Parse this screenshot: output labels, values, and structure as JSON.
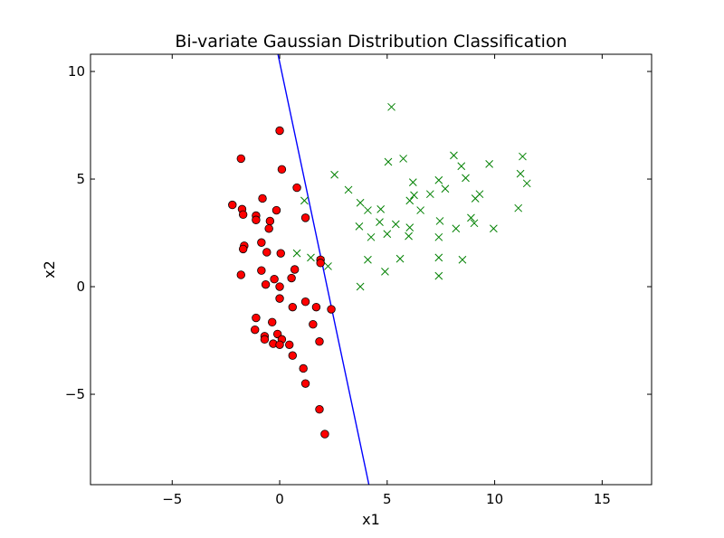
{
  "chart_data": {
    "type": "scatter",
    "title": "Bi-variate Gaussian Distribution Classification",
    "xlabel": "x1",
    "ylabel": "x2",
    "xlim": [
      -8.8,
      17.3
    ],
    "ylim": [
      -9.2,
      10.8
    ],
    "xticks": [
      -5,
      0,
      5,
      10,
      15
    ],
    "yticks": [
      -5,
      0,
      5,
      10
    ],
    "grid": false,
    "colors": {
      "class_a": "#ff0000",
      "class_b": "#008000",
      "boundary": "#0000ff"
    },
    "series": [
      {
        "marker": "circle",
        "points": [
          [
            0.0,
            7.25
          ],
          [
            -1.8,
            5.95
          ],
          [
            0.1,
            5.45
          ],
          [
            0.8,
            4.6
          ],
          [
            -0.8,
            4.1
          ],
          [
            -2.2,
            3.8
          ],
          [
            -1.75,
            3.6
          ],
          [
            -0.15,
            3.55
          ],
          [
            -1.7,
            3.35
          ],
          [
            -1.1,
            3.3
          ],
          [
            -1.1,
            3.1
          ],
          [
            -0.45,
            3.05
          ],
          [
            1.2,
            3.2
          ],
          [
            -0.5,
            2.7
          ],
          [
            -0.85,
            2.05
          ],
          [
            -1.65,
            1.9
          ],
          [
            -1.7,
            1.75
          ],
          [
            -0.6,
            1.6
          ],
          [
            0.05,
            1.55
          ],
          [
            1.9,
            1.25
          ],
          [
            1.9,
            1.1
          ],
          [
            0.7,
            0.8
          ],
          [
            -0.85,
            0.75
          ],
          [
            -1.8,
            0.55
          ],
          [
            0.55,
            0.4
          ],
          [
            -0.25,
            0.35
          ],
          [
            -0.65,
            0.1
          ],
          [
            0.0,
            0.0
          ],
          [
            0.0,
            -0.55
          ],
          [
            1.2,
            -0.7
          ],
          [
            0.6,
            -0.95
          ],
          [
            1.7,
            -0.95
          ],
          [
            2.4,
            -1.05
          ],
          [
            -1.1,
            -1.45
          ],
          [
            -0.35,
            -1.65
          ],
          [
            1.55,
            -1.75
          ],
          [
            -1.15,
            -2.0
          ],
          [
            -0.1,
            -2.2
          ],
          [
            -0.7,
            -2.3
          ],
          [
            -0.7,
            -2.45
          ],
          [
            0.1,
            -2.45
          ],
          [
            -0.3,
            -2.65
          ],
          [
            0.0,
            -2.7
          ],
          [
            0.45,
            -2.7
          ],
          [
            1.85,
            -2.55
          ],
          [
            0.6,
            -3.2
          ],
          [
            1.1,
            -3.8
          ],
          [
            1.2,
            -4.5
          ],
          [
            1.85,
            -5.7
          ],
          [
            2.1,
            -6.85
          ]
        ]
      },
      {
        "marker": "x",
        "points": [
          [
            5.2,
            8.35
          ],
          [
            11.3,
            6.05
          ],
          [
            8.1,
            6.1
          ],
          [
            5.75,
            5.95
          ],
          [
            5.05,
            5.8
          ],
          [
            9.75,
            5.7
          ],
          [
            8.45,
            5.6
          ],
          [
            11.2,
            5.25
          ],
          [
            2.55,
            5.2
          ],
          [
            8.65,
            5.05
          ],
          [
            7.4,
            4.95
          ],
          [
            6.2,
            4.85
          ],
          [
            11.5,
            4.8
          ],
          [
            7.7,
            4.55
          ],
          [
            3.2,
            4.5
          ],
          [
            6.25,
            4.25
          ],
          [
            9.3,
            4.3
          ],
          [
            7.0,
            4.3
          ],
          [
            9.1,
            4.1
          ],
          [
            1.15,
            4.0
          ],
          [
            6.05,
            4.0
          ],
          [
            3.75,
            3.9
          ],
          [
            4.1,
            3.55
          ],
          [
            4.7,
            3.6
          ],
          [
            6.55,
            3.55
          ],
          [
            11.1,
            3.65
          ],
          [
            8.9,
            3.2
          ],
          [
            9.05,
            2.95
          ],
          [
            7.45,
            3.05
          ],
          [
            4.65,
            3.0
          ],
          [
            5.4,
            2.9
          ],
          [
            3.7,
            2.8
          ],
          [
            6.05,
            2.75
          ],
          [
            9.95,
            2.7
          ],
          [
            8.2,
            2.7
          ],
          [
            5.0,
            2.45
          ],
          [
            6.0,
            2.35
          ],
          [
            4.25,
            2.3
          ],
          [
            7.4,
            2.3
          ],
          [
            0.8,
            1.55
          ],
          [
            1.45,
            1.35
          ],
          [
            7.4,
            1.35
          ],
          [
            5.6,
            1.3
          ],
          [
            8.5,
            1.25
          ],
          [
            4.1,
            1.25
          ],
          [
            1.9,
            1.2
          ],
          [
            2.25,
            0.95
          ],
          [
            4.9,
            0.7
          ],
          [
            7.4,
            0.5
          ],
          [
            3.75,
            0.0
          ]
        ]
      }
    ],
    "boundary_line": {
      "x": [
        -0.08,
        4.15
      ],
      "y": [
        10.8,
        -9.2
      ]
    }
  }
}
